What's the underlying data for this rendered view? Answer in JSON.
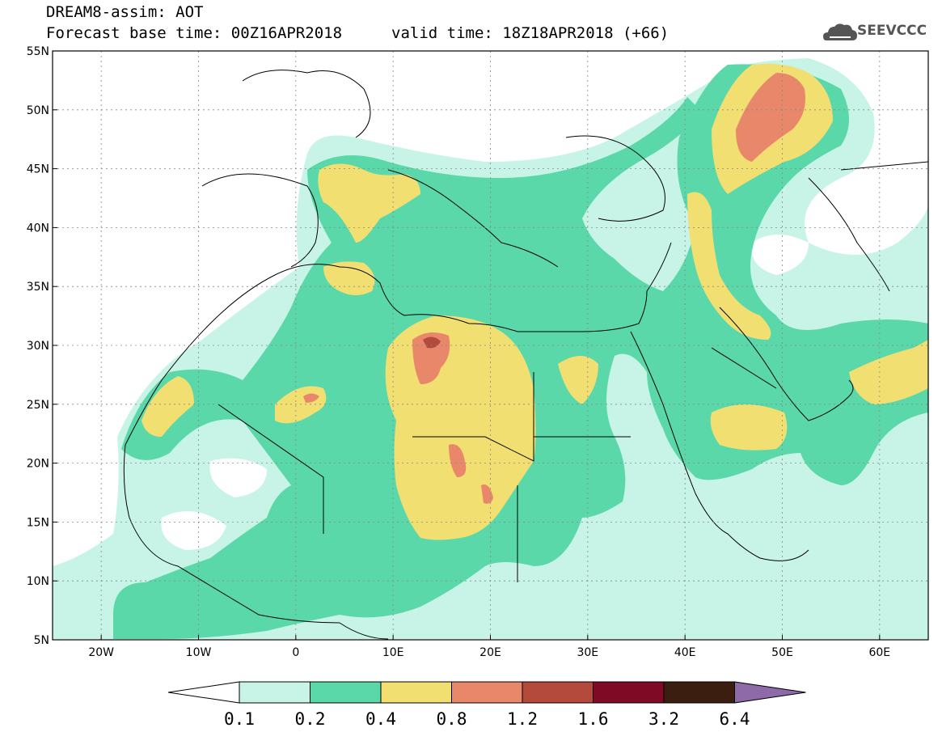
{
  "header": {
    "title_line1": "DREAM8-assim: AOT",
    "title_line2": "Forecast base time: 00Z16APR2018",
    "valid_time": "valid time: 18Z18APR2018 (+66)"
  },
  "logo": {
    "text": "SEEVCCC",
    "icon": "cloud-icon"
  },
  "map": {
    "lon_range": [
      -25,
      65
    ],
    "lat_range": [
      5,
      55
    ],
    "lat_ticks": [
      {
        "value": 55,
        "label": "55N"
      },
      {
        "value": 50,
        "label": "50N"
      },
      {
        "value": 45,
        "label": "45N"
      },
      {
        "value": 40,
        "label": "40N"
      },
      {
        "value": 35,
        "label": "35N"
      },
      {
        "value": 30,
        "label": "30N"
      },
      {
        "value": 25,
        "label": "25N"
      },
      {
        "value": 20,
        "label": "20N"
      },
      {
        "value": 15,
        "label": "15N"
      },
      {
        "value": 10,
        "label": "10N"
      },
      {
        "value": 5,
        "label": "5N"
      }
    ],
    "lon_ticks": [
      {
        "value": -20,
        "label": "20W"
      },
      {
        "value": -10,
        "label": "10W"
      },
      {
        "value": 0,
        "label": "0"
      },
      {
        "value": 10,
        "label": "10E"
      },
      {
        "value": 20,
        "label": "20E"
      },
      {
        "value": 30,
        "label": "30E"
      },
      {
        "value": 40,
        "label": "40E"
      },
      {
        "value": 50,
        "label": "50E"
      },
      {
        "value": 60,
        "label": "60E"
      }
    ],
    "grid": "dotted",
    "colors": {
      "c01": "#c8f4e8",
      "c02": "#5ad8aa",
      "c04": "#f2df72",
      "c08": "#e8876a",
      "c12": "#b44a3c",
      "border": "#000000"
    }
  },
  "colorbar": {
    "levels": [
      "0.1",
      "0.2",
      "0.4",
      "0.8",
      "1.2",
      "1.6",
      "3.2",
      "6.4"
    ],
    "colors": [
      "#c8f4e8",
      "#5ad8aa",
      "#f2df72",
      "#e8876a",
      "#b44a3c",
      "#7e0a26",
      "#3b1e10",
      "#8e6aa8"
    ]
  }
}
